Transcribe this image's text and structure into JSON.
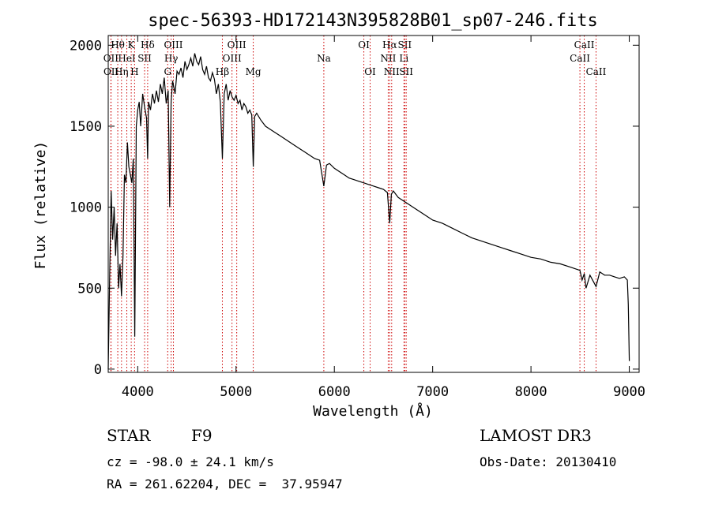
{
  "chart_data": {
    "type": "line",
    "title": "spec-56393-HD172143N395828B01_sp07-246.fits",
    "xlabel": "Wavelength (Å)",
    "ylabel": "Flux (relative)",
    "xlim": [
      3700,
      9100
    ],
    "ylim": [
      -20,
      2060
    ],
    "xticks": [
      4000,
      5000,
      6000,
      7000,
      8000,
      9000
    ],
    "yticks": [
      0,
      500,
      1000,
      1500,
      2000
    ],
    "series": [
      {
        "name": "flux",
        "x": [
          3700,
          3715,
          3730,
          3745,
          3760,
          3775,
          3790,
          3805,
          3820,
          3835,
          3850,
          3865,
          3880,
          3895,
          3910,
          3925,
          3940,
          3955,
          3970,
          3985,
          4000,
          4015,
          4030,
          4050,
          4070,
          4090,
          4101,
          4110,
          4130,
          4150,
          4170,
          4190,
          4210,
          4230,
          4250,
          4270,
          4290,
          4310,
          4325,
          4340,
          4355,
          4380,
          4400,
          4420,
          4440,
          4460,
          4480,
          4500,
          4520,
          4540,
          4560,
          4580,
          4600,
          4620,
          4640,
          4660,
          4680,
          4700,
          4720,
          4740,
          4760,
          4780,
          4800,
          4820,
          4840,
          4861,
          4880,
          4900,
          4920,
          4940,
          4960,
          4980,
          5000,
          5020,
          5040,
          5060,
          5080,
          5100,
          5120,
          5140,
          5160,
          5175,
          5190,
          5210,
          5250,
          5300,
          5350,
          5400,
          5450,
          5500,
          5550,
          5600,
          5650,
          5700,
          5750,
          5800,
          5850,
          5893,
          5920,
          5950,
          6000,
          6050,
          6100,
          6150,
          6200,
          6250,
          6300,
          6350,
          6400,
          6450,
          6500,
          6540,
          6563,
          6580,
          6600,
          6650,
          6700,
          6750,
          6800,
          6900,
          7000,
          7100,
          7200,
          7300,
          7400,
          7500,
          7600,
          7700,
          7800,
          7900,
          8000,
          8100,
          8200,
          8300,
          8400,
          8498,
          8520,
          8542,
          8560,
          8600,
          8662,
          8700,
          8750,
          8800,
          8850,
          8900,
          8950,
          8980,
          8990,
          9000
        ],
        "values": [
          0,
          600,
          1100,
          800,
          1000,
          700,
          900,
          500,
          650,
          450,
          700,
          1200,
          1150,
          1400,
          1250,
          1200,
          1150,
          1300,
          200,
          1500,
          1600,
          1650,
          1500,
          1700,
          1620,
          1550,
          1300,
          1650,
          1600,
          1700,
          1640,
          1720,
          1650,
          1760,
          1700,
          1800,
          1640,
          1720,
          1000,
          1650,
          1780,
          1700,
          1840,
          1820,
          1860,
          1800,
          1900,
          1850,
          1880,
          1920,
          1870,
          1950,
          1900,
          1880,
          1930,
          1850,
          1820,
          1870,
          1800,
          1780,
          1830,
          1790,
          1700,
          1760,
          1650,
          1300,
          1700,
          1760,
          1660,
          1720,
          1680,
          1660,
          1690,
          1640,
          1660,
          1600,
          1640,
          1620,
          1580,
          1600,
          1570,
          1250,
          1560,
          1580,
          1540,
          1500,
          1480,
          1460,
          1440,
          1420,
          1400,
          1380,
          1360,
          1340,
          1320,
          1300,
          1290,
          1130,
          1260,
          1270,
          1240,
          1220,
          1200,
          1180,
          1170,
          1160,
          1150,
          1140,
          1130,
          1120,
          1110,
          1090,
          900,
          1080,
          1100,
          1060,
          1040,
          1020,
          1000,
          960,
          920,
          900,
          870,
          840,
          810,
          790,
          770,
          750,
          730,
          710,
          690,
          680,
          660,
          650,
          630,
          610,
          550,
          590,
          500,
          580,
          510,
          600,
          580,
          580,
          570,
          560,
          570,
          550,
          400,
          50
        ]
      }
    ],
    "spectral_lines": [
      {
        "label": "Hθ",
        "wl": 3797,
        "row": 1
      },
      {
        "label": "OII",
        "wl": 3727,
        "row": 2
      },
      {
        "label": "OII",
        "wl": 3729,
        "row": 3
      },
      {
        "label": "K",
        "wl": 3934,
        "row": 1
      },
      {
        "label": "HeI",
        "wl": 3889,
        "row": 2
      },
      {
        "label": "Hη",
        "wl": 3835,
        "row": 3
      },
      {
        "label": "Hδ",
        "wl": 4101,
        "row": 1
      },
      {
        "label": "SII",
        "wl": 4070,
        "row": 2
      },
      {
        "label": "H",
        "wl": 3968,
        "row": 3
      },
      {
        "label": "OIII",
        "wl": 4363,
        "row": 1
      },
      {
        "label": "Hγ",
        "wl": 4340,
        "row": 2
      },
      {
        "label": "G",
        "wl": 4305,
        "row": 3
      },
      {
        "label": "OIII",
        "wl": 5007,
        "row": 1
      },
      {
        "label": "OIII",
        "wl": 4959,
        "row": 2
      },
      {
        "label": "Hβ",
        "wl": 4861,
        "row": 3
      },
      {
        "label": "Mg",
        "wl": 5175,
        "row": 3
      },
      {
        "label": "Na",
        "wl": 5893,
        "row": 2
      },
      {
        "label": "OI",
        "wl": 6300,
        "row": 1
      },
      {
        "label": "OI",
        "wl": 6364,
        "row": 3
      },
      {
        "label": "Hα",
        "wl": 6563,
        "row": 1
      },
      {
        "label": "SII",
        "wl": 6716,
        "row": 1
      },
      {
        "label": "NII",
        "wl": 6548,
        "row": 2
      },
      {
        "label": "Li",
        "wl": 6708,
        "row": 2
      },
      {
        "label": "NII",
        "wl": 6583,
        "row": 3
      },
      {
        "label": "SII",
        "wl": 6731,
        "row": 3
      },
      {
        "label": "CaII",
        "wl": 8542,
        "row": 1
      },
      {
        "label": "CaII",
        "wl": 8498,
        "row": 2
      },
      {
        "label": "CaII",
        "wl": 8662,
        "row": 3
      }
    ]
  },
  "footer": {
    "object_class": "STAR",
    "subclass": "F9",
    "survey": "LAMOST DR3",
    "redshift": "cz = -98.0 ± 24.1 km/s",
    "obs_date": "Obs-Date: 20130410",
    "coords": "RA = 261.62204, DEC =  37.95947"
  },
  "colors": {
    "line_marker": "#cc0000",
    "spectrum": "#000000"
  }
}
